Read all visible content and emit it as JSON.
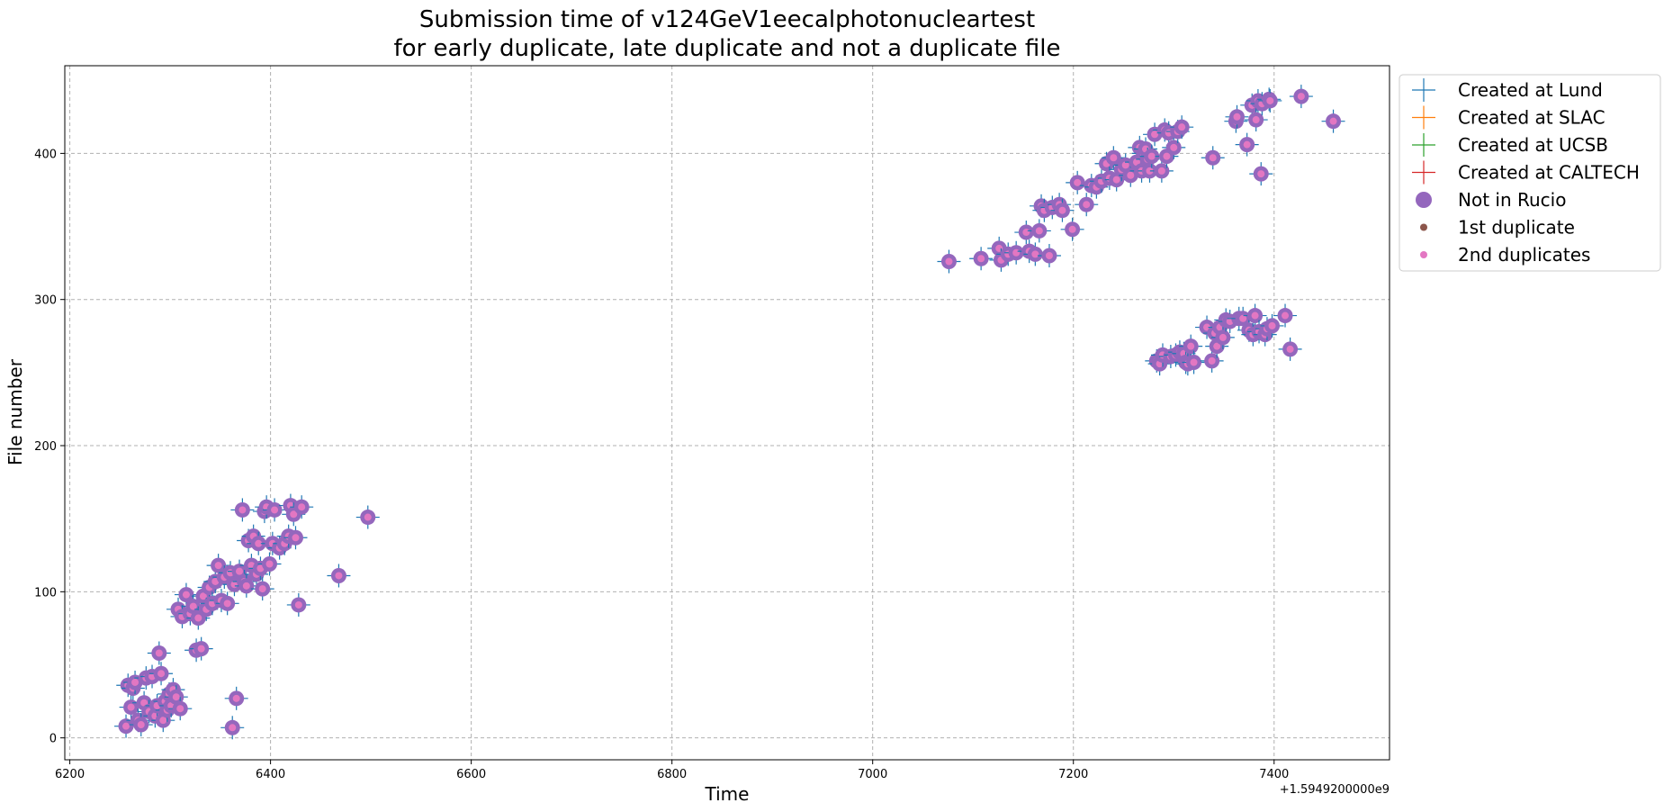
{
  "chart_data": {
    "type": "scatter",
    "title": [
      "Submission time of v124GeV1eecalphotonucleartest",
      "for early duplicate, late duplicate and not a duplicate file"
    ],
    "xlabel": "Time",
    "ylabel": "File number",
    "x_offset_label": "+1.5949200000e9",
    "xlim": [
      6195,
      7515
    ],
    "ylim": [
      -15,
      460
    ],
    "x_ticks": [
      6200,
      6400,
      6600,
      6800,
      7000,
      7200,
      7400
    ],
    "y_ticks": [
      0,
      100,
      200,
      300,
      400
    ],
    "grid": true,
    "legend_placement": "outside-top-right",
    "colors": {
      "lund": "#1f77b4",
      "slac": "#ff7f0e",
      "ucsb": "#2ca02c",
      "caltech": "#d62728",
      "not_in_rucio": "#9467bd",
      "first_duplicate": "#8c564b",
      "second_duplicates": "#e377c2"
    },
    "legend": [
      {
        "label": "Created at Lund",
        "marker": "plus",
        "color": "#1f77b4"
      },
      {
        "label": "Created at SLAC",
        "marker": "plus",
        "color": "#ff7f0e"
      },
      {
        "label": "Created at UCSB",
        "marker": "plus",
        "color": "#2ca02c"
      },
      {
        "label": "Created at CALTECH",
        "marker": "plus",
        "color": "#d62728"
      },
      {
        "label": "Not in Rucio",
        "marker": "big-dot",
        "color": "#9467bd"
      },
      {
        "label": "1st duplicate",
        "marker": "small-dot",
        "color": "#8c564b"
      },
      {
        "label": "2nd duplicates",
        "marker": "small-dot",
        "color": "#e377c2"
      }
    ],
    "series": [
      {
        "name": "Created at Lund",
        "points": [
          [
            6256,
            8
          ],
          [
            6258,
            36
          ],
          [
            6261,
            21
          ],
          [
            6263,
            34
          ],
          [
            6265,
            38
          ],
          [
            6268,
            12
          ],
          [
            6271,
            9
          ],
          [
            6274,
            24
          ],
          [
            6276,
            41
          ],
          [
            6279,
            18
          ],
          [
            6282,
            42
          ],
          [
            6285,
            15
          ],
          [
            6287,
            22
          ],
          [
            6289,
            58
          ],
          [
            6291,
            44
          ],
          [
            6293,
            12
          ],
          [
            6295,
            25
          ],
          [
            6297,
            19
          ],
          [
            6299,
            30
          ],
          [
            6301,
            22
          ],
          [
            6303,
            33
          ],
          [
            6306,
            28
          ],
          [
            6308,
            88
          ],
          [
            6310,
            20
          ],
          [
            6312,
            83
          ],
          [
            6316,
            98
          ],
          [
            6320,
            85
          ],
          [
            6323,
            90
          ],
          [
            6326,
            60
          ],
          [
            6328,
            82
          ],
          [
            6331,
            61
          ],
          [
            6333,
            97
          ],
          [
            6336,
            88
          ],
          [
            6339,
            103
          ],
          [
            6342,
            92
          ],
          [
            6345,
            107
          ],
          [
            6348,
            118
          ],
          [
            6351,
            94
          ],
          [
            6354,
            110
          ],
          [
            6357,
            92
          ],
          [
            6360,
            113
          ],
          [
            6362,
            7
          ],
          [
            6364,
            105
          ],
          [
            6366,
            27
          ],
          [
            6369,
            114
          ],
          [
            6372,
            156
          ],
          [
            6374,
            107
          ],
          [
            6376,
            104
          ],
          [
            6378,
            135
          ],
          [
            6381,
            118
          ],
          [
            6383,
            138
          ],
          [
            6386,
            112
          ],
          [
            6388,
            133
          ],
          [
            6390,
            116
          ],
          [
            6392,
            102
          ],
          [
            6394,
            155
          ],
          [
            6396,
            158
          ],
          [
            6399,
            119
          ],
          [
            6402,
            133
          ],
          [
            6404,
            156
          ],
          [
            6409,
            130
          ],
          [
            6414,
            133
          ],
          [
            6418,
            138
          ],
          [
            6420,
            159
          ],
          [
            6423,
            153
          ],
          [
            6425,
            137
          ],
          [
            6428,
            91
          ],
          [
            6431,
            158
          ],
          [
            6468,
            111
          ],
          [
            6497,
            151
          ],
          [
            7076,
            326
          ],
          [
            7108,
            328
          ],
          [
            7126,
            335
          ],
          [
            7128,
            327
          ],
          [
            7135,
            331
          ],
          [
            7143,
            332
          ],
          [
            7153,
            346
          ],
          [
            7156,
            333
          ],
          [
            7162,
            331
          ],
          [
            7166,
            347
          ],
          [
            7168,
            364
          ],
          [
            7171,
            361
          ],
          [
            7176,
            330
          ],
          [
            7179,
            363
          ],
          [
            7186,
            365
          ],
          [
            7189,
            361
          ],
          [
            7199,
            348
          ],
          [
            7204,
            380
          ],
          [
            7213,
            365
          ],
          [
            7218,
            378
          ],
          [
            7223,
            377
          ],
          [
            7228,
            381
          ],
          [
            7233,
            393
          ],
          [
            7236,
            383
          ],
          [
            7240,
            397
          ],
          [
            7243,
            382
          ],
          [
            7248,
            389
          ],
          [
            7252,
            392
          ],
          [
            7257,
            385
          ],
          [
            7263,
            394
          ],
          [
            7266,
            404
          ],
          [
            7268,
            388
          ],
          [
            7270,
            400
          ],
          [
            7272,
            403
          ],
          [
            7274,
            396
          ],
          [
            7276,
            388
          ],
          [
            7278,
            398
          ],
          [
            7281,
            413
          ],
          [
            7283,
            258
          ],
          [
            7286,
            256
          ],
          [
            7288,
            388
          ],
          [
            7289,
            262
          ],
          [
            7291,
            416
          ],
          [
            7293,
            398
          ],
          [
            7295,
            414
          ],
          [
            7297,
            261
          ],
          [
            7300,
            404
          ],
          [
            7302,
            262
          ],
          [
            7304,
            415
          ],
          [
            7306,
            264
          ],
          [
            7308,
            418
          ],
          [
            7310,
            263
          ],
          [
            7312,
            257
          ],
          [
            7314,
            256
          ],
          [
            7317,
            268
          ],
          [
            7320,
            257
          ],
          [
            7333,
            281
          ],
          [
            7338,
            258
          ],
          [
            7339,
            397
          ],
          [
            7341,
            277
          ],
          [
            7343,
            268
          ],
          [
            7346,
            281
          ],
          [
            7349,
            274
          ],
          [
            7352,
            286
          ],
          [
            7356,
            285
          ],
          [
            7362,
            422
          ],
          [
            7363,
            425
          ],
          [
            7365,
            287
          ],
          [
            7369,
            287
          ],
          [
            7373,
            406
          ],
          [
            7375,
            279
          ],
          [
            7378,
            433
          ],
          [
            7379,
            276
          ],
          [
            7381,
            289
          ],
          [
            7382,
            423
          ],
          [
            7384,
            436
          ],
          [
            7385,
            278
          ],
          [
            7387,
            386
          ],
          [
            7388,
            434
          ],
          [
            7391,
            276
          ],
          [
            7393,
            280
          ],
          [
            7395,
            437
          ],
          [
            7396,
            436
          ],
          [
            7398,
            282
          ],
          [
            7411,
            289
          ],
          [
            7416,
            266
          ],
          [
            7427,
            439
          ],
          [
            7459,
            422
          ]
        ]
      },
      {
        "name": "Created at SLAC",
        "points": []
      },
      {
        "name": "Created at UCSB",
        "points": []
      },
      {
        "name": "Created at CALTECH",
        "points": []
      },
      {
        "name": "Not in Rucio",
        "same_points_as": "Created at Lund"
      },
      {
        "name": "1st duplicate",
        "points": []
      },
      {
        "name": "2nd duplicates",
        "same_points_as": "Created at Lund"
      }
    ]
  }
}
